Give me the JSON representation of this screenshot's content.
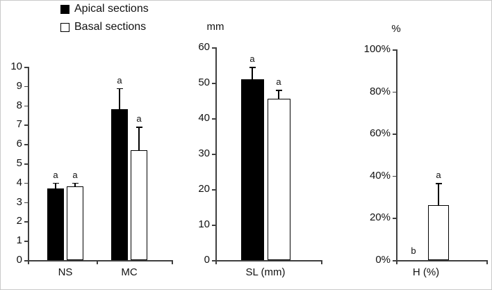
{
  "figure": {
    "background": "#ffffff"
  },
  "legend": {
    "items": [
      {
        "label": "Apical sections",
        "fill": "#000000"
      },
      {
        "label": "Basal sections",
        "fill": "#ffffff"
      }
    ]
  },
  "chart_data": [
    {
      "type": "bar",
      "panel": "left",
      "title": "",
      "unit_label": "",
      "ylim": [
        0,
        10
      ],
      "yticks": [
        0,
        1,
        2,
        3,
        4,
        5,
        6,
        7,
        8,
        9,
        10
      ],
      "ytick_labels": [
        "0",
        "1",
        "2",
        "3",
        "4",
        "5",
        "6",
        "7",
        "8",
        "9",
        "10"
      ],
      "categories": [
        "NS",
        "MC"
      ],
      "grid": false,
      "legend_position": "top-left",
      "series": [
        {
          "name": "Apical sections",
          "fill": "#000000",
          "values": [
            3.7,
            7.8
          ],
          "errors": [
            0.3,
            1.1
          ],
          "letters": [
            "a",
            "a"
          ]
        },
        {
          "name": "Basal sections",
          "fill": "#ffffff",
          "values": [
            3.8,
            5.7
          ],
          "errors": [
            0.2,
            1.2
          ],
          "letters": [
            "a",
            "a"
          ]
        }
      ]
    },
    {
      "type": "bar",
      "panel": "middle",
      "title": "",
      "unit_label": "mm",
      "ylim": [
        0,
        60
      ],
      "yticks": [
        0,
        10,
        20,
        30,
        40,
        50,
        60
      ],
      "ytick_labels": [
        "0",
        "10",
        "20",
        "30",
        "40",
        "50",
        "60"
      ],
      "categories": [
        "SL (mm)"
      ],
      "grid": false,
      "series": [
        {
          "name": "Apical sections",
          "fill": "#000000",
          "values": [
            51
          ],
          "errors": [
            3.5
          ],
          "letters": [
            "a"
          ]
        },
        {
          "name": "Basal sections",
          "fill": "#ffffff",
          "values": [
            45.5
          ],
          "errors": [
            2.5
          ],
          "letters": [
            "a"
          ]
        }
      ]
    },
    {
      "type": "bar",
      "panel": "right",
      "title": "",
      "unit_label": "%",
      "ylim": [
        0,
        100
      ],
      "yticks": [
        0,
        20,
        40,
        60,
        80,
        100
      ],
      "ytick_labels": [
        "0%",
        "20%",
        "40%",
        "60%",
        "80%",
        "100%"
      ],
      "categories": [
        "H (%)"
      ],
      "grid": false,
      "series": [
        {
          "name": "Apical sections",
          "fill": "#000000",
          "values": [
            0
          ],
          "errors": [
            0
          ],
          "letters": [
            "b"
          ]
        },
        {
          "name": "Basal sections",
          "fill": "#ffffff",
          "values": [
            26
          ],
          "errors": [
            10.5
          ],
          "letters": [
            "a"
          ]
        }
      ]
    }
  ]
}
